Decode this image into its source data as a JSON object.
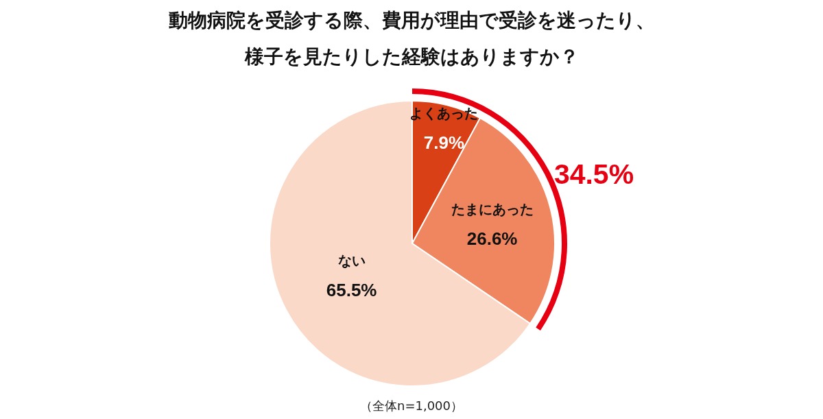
{
  "chart_data": {
    "type": "pie",
    "title": "動物病院を受診する際、費用が理由で受診を迷ったり、様子を見たりした経験はありますか？",
    "categories": [
      "よくあった",
      "たまにあった",
      "ない"
    ],
    "values": [
      7.9,
      26.6,
      65.5
    ],
    "colors": [
      "#d94016",
      "#ef8660",
      "#fad9c8"
    ],
    "value_labels": [
      "7.9%",
      "26.6%",
      "65.5%"
    ],
    "annotations": [
      "34.5%",
      "（全体n=1,000）"
    ]
  }
}
